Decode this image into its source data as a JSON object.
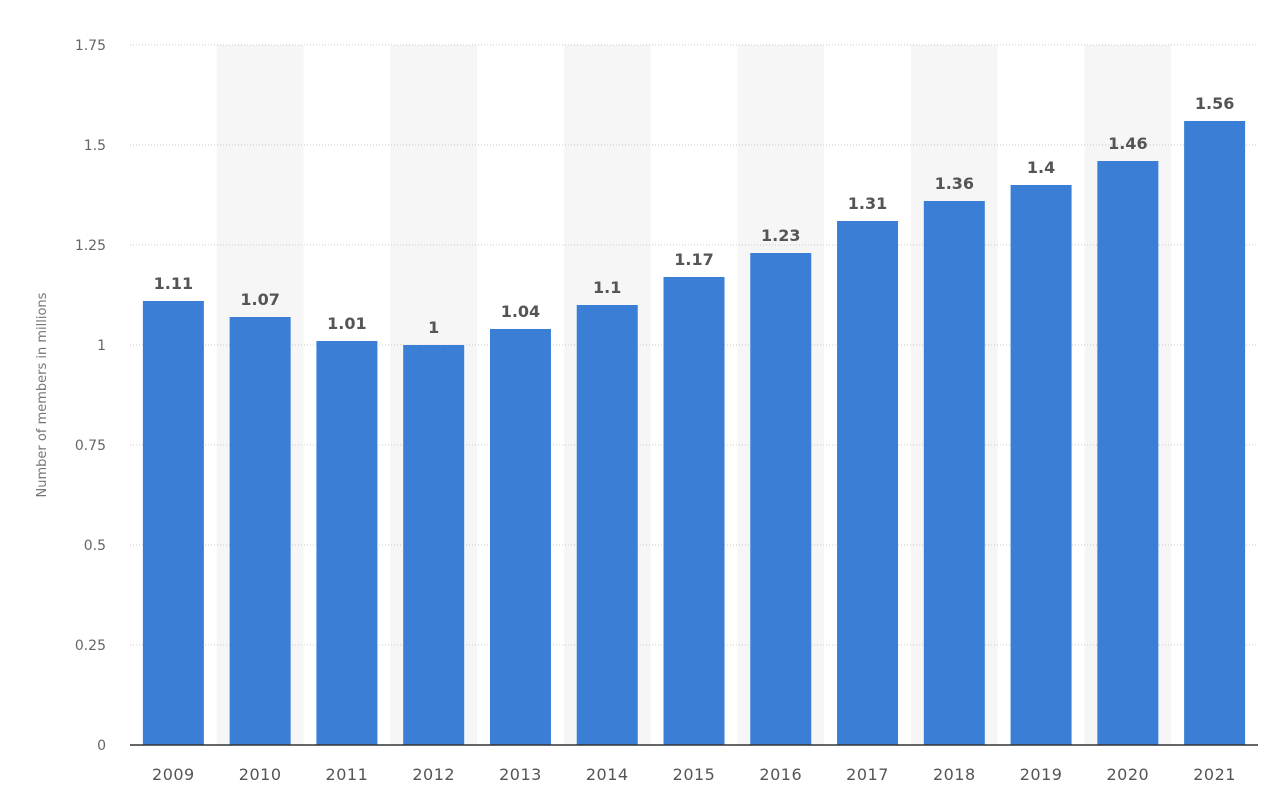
{
  "chart_data": {
    "type": "bar",
    "categories": [
      "2009",
      "2010",
      "2011",
      "2012",
      "2013",
      "2014",
      "2015",
      "2016",
      "2017",
      "2018",
      "2019",
      "2020",
      "2021"
    ],
    "values": [
      1.11,
      1.07,
      1.01,
      1,
      1.04,
      1.1,
      1.17,
      1.23,
      1.31,
      1.36,
      1.4,
      1.46,
      1.56
    ],
    "value_labels": [
      "1.11",
      "1.07",
      "1.01",
      "1",
      "1.04",
      "1.1",
      "1.17",
      "1.23",
      "1.31",
      "1.36",
      "1.4",
      "1.46",
      "1.56"
    ],
    "yticks": [
      0,
      0.25,
      0.5,
      0.75,
      1,
      1.25,
      1.5,
      1.75
    ],
    "ytick_labels": [
      "0",
      "0.25",
      "0.5",
      "0.75",
      "1",
      "1.25",
      "1.5",
      "1.75"
    ],
    "ylim": [
      0,
      1.75
    ],
    "title": "",
    "xlabel": "",
    "ylabel": "Number of members in millions",
    "grid": true,
    "legend": false,
    "colors": {
      "bar": "#3a7fd5",
      "band": "#f6f6f6",
      "grid": "#c8c8c8",
      "axis": "#333333"
    }
  }
}
